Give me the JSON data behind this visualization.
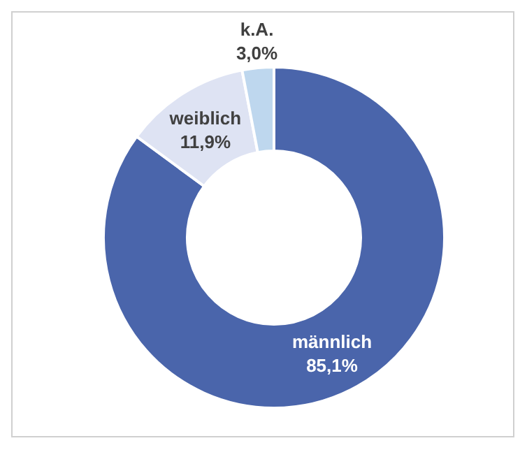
{
  "chart_data": {
    "type": "donut",
    "categories": [
      "männlich",
      "weiblich",
      "k.A."
    ],
    "values": [
      85.1,
      11.9,
      3.0
    ],
    "value_labels": [
      "85,1%",
      "11,9%",
      "3,0%"
    ],
    "colors": [
      "#4a65ab",
      "#dee3f3",
      "#bed7ee"
    ],
    "legend": false
  }
}
